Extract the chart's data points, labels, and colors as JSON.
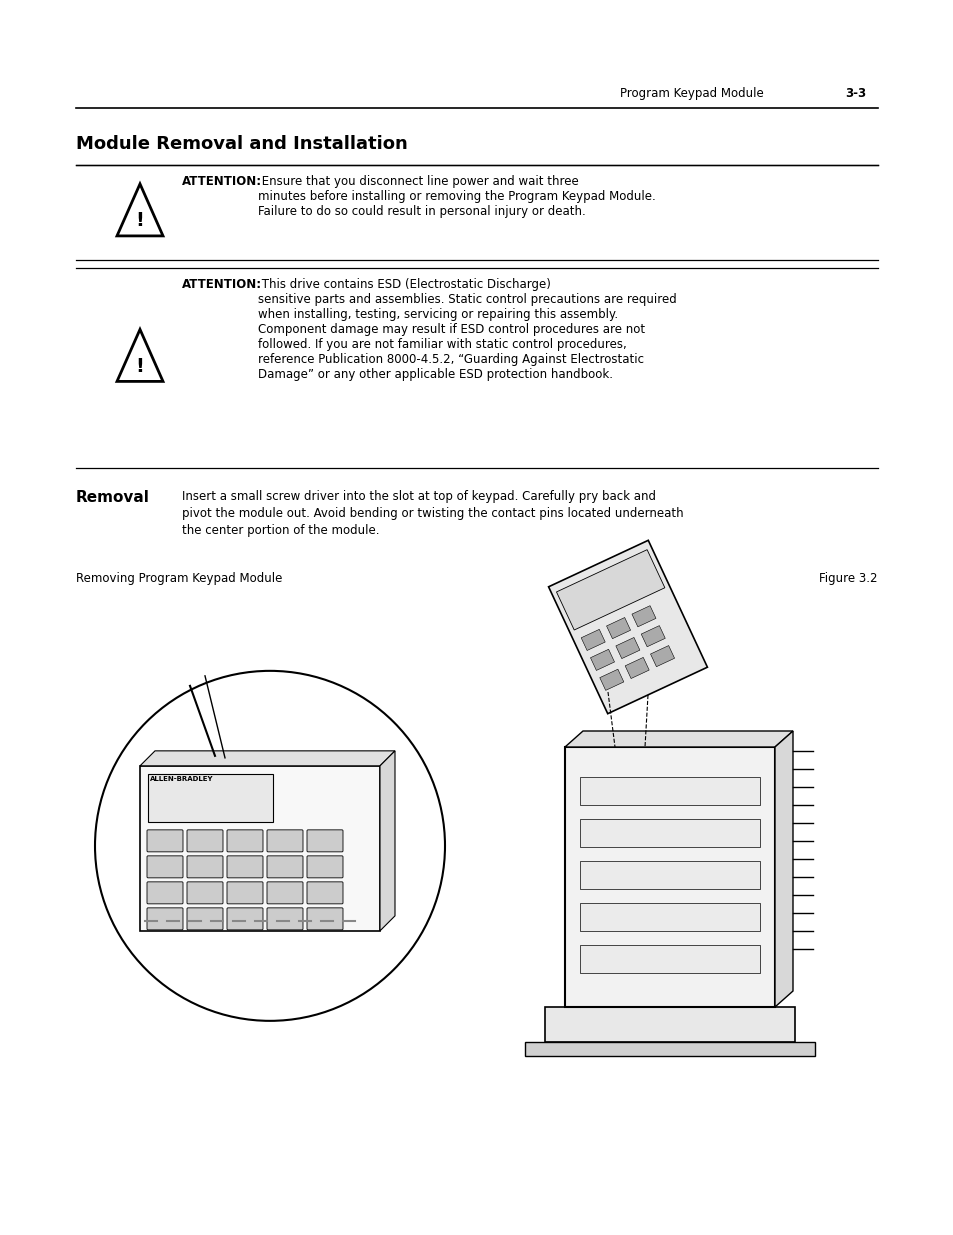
{
  "bg_color": "#ffffff",
  "header_text": "Program Keypad Module",
  "header_page": "3-3",
  "title": "Module Removal and Installation",
  "attention1_bold": "ATTENTION:",
  "attention1_text": " Ensure that you disconnect line power and wait three\nminutes before installing or removing the Program Keypad Module.\nFailure to do so could result in personal injury or death.",
  "attention2_bold": "ATTENTION:",
  "attention2_text": " This drive contains ESD (Electrostatic Discharge)\nsensitive parts and assemblies. Static control precautions are required\nwhen installing, testing, servicing or repairing this assembly.\nComponent damage may result if ESD control procedures are not\nfollowed. If you are not familiar with static control procedures,\nreference Publication 8000-4.5.2, “Guarding Against Electrostatic\nDamage” or any other applicable ESD protection handbook.",
  "removal_heading": "Removal",
  "removal_text": "Insert a small screw driver into the slot at top of keypad. Carefully pry back and\npivot the module out. Avoid bending or twisting the contact pins located underneath\nthe center portion of the module.",
  "figure_label_left": "Removing Program Keypad Module",
  "figure_label_right": "Figure 3.2",
  "text_color": "#000000",
  "line_color": "#000000"
}
